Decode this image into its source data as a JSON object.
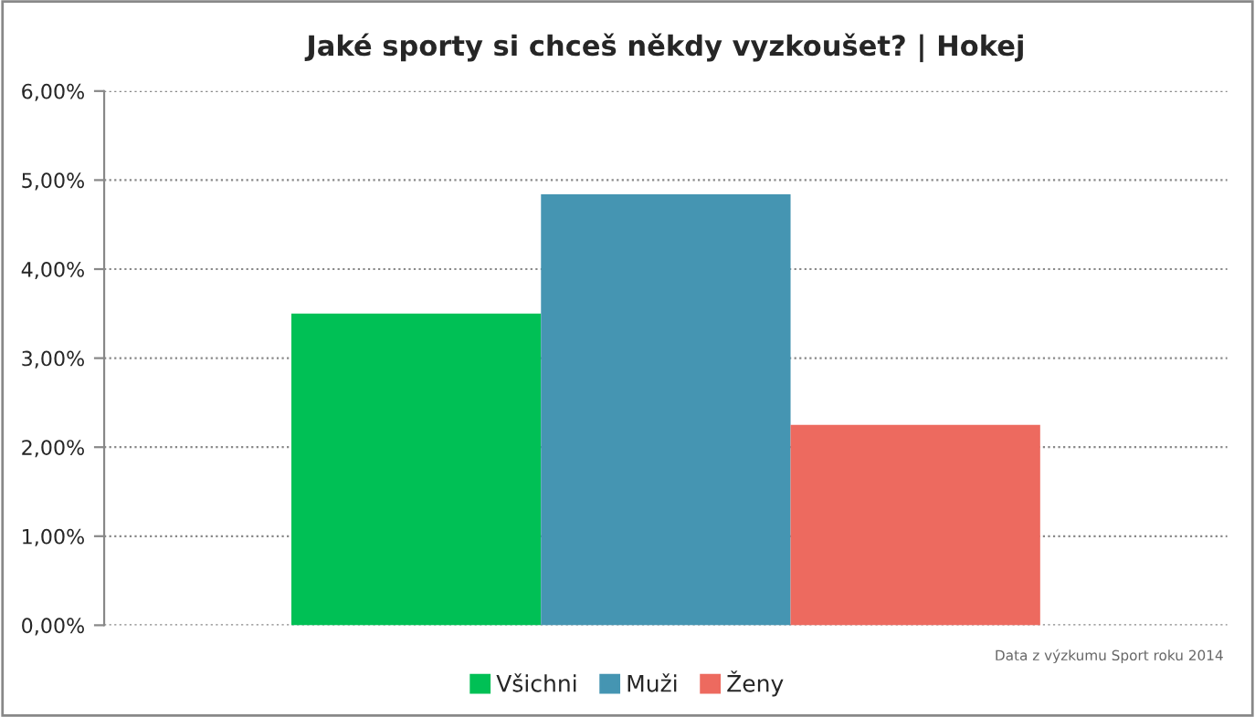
{
  "chart_data": {
    "type": "bar",
    "title": "Jaké sporty si chceš někdy vyzkoušet? | Hokej",
    "categories": [
      null
    ],
    "series": [
      {
        "name": "Všichni",
        "color": "#00c055",
        "values": [
          3.5
        ]
      },
      {
        "name": "Muži",
        "color": "#4595b2",
        "values": [
          4.84
        ]
      },
      {
        "name": "Ženy",
        "color": "#ed6a5f",
        "values": [
          2.25
        ]
      }
    ],
    "ylim": [
      0,
      6
    ],
    "yticks": [
      {
        "value": 0,
        "label": "0,00%"
      },
      {
        "value": 1,
        "label": "1,00%"
      },
      {
        "value": 2,
        "label": "2,00%"
      },
      {
        "value": 3,
        "label": "3,00%"
      },
      {
        "value": 4,
        "label": "4,00%"
      },
      {
        "value": 5,
        "label": "5,00%"
      },
      {
        "value": 6,
        "label": "6,00%"
      }
    ],
    "grid": "y",
    "legend": "bottom",
    "annotations": [
      "Data z výzkumu Sport roku 2014"
    ]
  }
}
